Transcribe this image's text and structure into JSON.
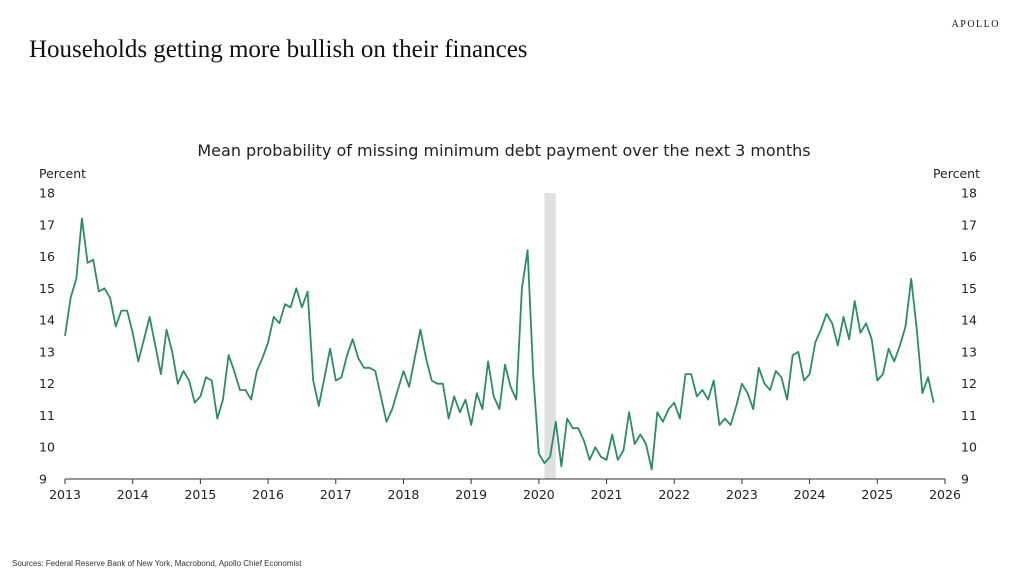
{
  "header": {
    "brand": "APOLLO",
    "title": "Households getting more bullish on their finances"
  },
  "footer": {
    "sources": "Sources: Federal Reserve Bank of New York, Macrobond, Apollo Chief Economist"
  },
  "colors": {
    "line": "#2e8b67",
    "recession": "#e0e0e0",
    "axis": "#333333"
  },
  "chart_data": {
    "type": "line",
    "title": "Mean probability of missing minimum debt payment over the next 3 months",
    "ylabel_left": "Percent",
    "ylabel_right": "Percent",
    "ylim": [
      9,
      18
    ],
    "yticks": [
      9,
      10,
      11,
      12,
      13,
      14,
      15,
      16,
      17,
      18
    ],
    "xlim": [
      2013,
      2026
    ],
    "xticks": [
      "2013",
      "2014",
      "2015",
      "2016",
      "2017",
      "2018",
      "2019",
      "2020",
      "2021",
      "2022",
      "2023",
      "2024",
      "2025",
      "2026"
    ],
    "shaded_period": {
      "start": 2020.083,
      "end": 2020.25
    },
    "series": [
      {
        "x_start": 2013.0,
        "frequency": "monthly",
        "values": [
          13.5,
          14.7,
          15.3,
          17.2,
          15.8,
          15.9,
          14.9,
          15.0,
          14.7,
          13.8,
          14.3,
          14.3,
          13.6,
          12.7,
          13.4,
          14.1,
          13.2,
          12.3,
          13.7,
          13.0,
          12.0,
          12.4,
          12.1,
          11.4,
          11.6,
          12.2,
          12.1,
          10.9,
          11.5,
          12.9,
          12.4,
          11.8,
          11.8,
          11.5,
          12.4,
          12.8,
          13.3,
          14.1,
          13.9,
          14.5,
          14.4,
          15.0,
          14.4,
          14.9,
          12.1,
          11.3,
          12.2,
          13.1,
          12.1,
          12.2,
          12.9,
          13.4,
          12.8,
          12.5,
          12.5,
          12.4,
          11.6,
          10.8,
          11.2,
          11.8,
          12.4,
          11.9,
          12.8,
          13.7,
          12.8,
          12.1,
          12.0,
          12.0,
          10.9,
          11.6,
          11.1,
          11.5,
          10.7,
          11.7,
          11.2,
          12.7,
          11.6,
          11.2,
          12.6,
          11.9,
          11.5,
          15.0,
          16.2,
          12.3,
          9.8,
          9.5,
          9.7,
          10.8,
          9.4,
          10.9,
          10.6,
          10.6,
          10.2,
          9.6,
          10.0,
          9.7,
          9.6,
          10.4,
          9.6,
          9.9,
          11.1,
          10.1,
          10.4,
          10.1,
          9.3,
          11.1,
          10.8,
          11.2,
          11.4,
          10.9,
          12.3,
          12.3,
          11.6,
          11.8,
          11.5,
          12.1,
          10.7,
          10.9,
          10.7,
          11.3,
          12.0,
          11.7,
          11.2,
          12.5,
          12.0,
          11.8,
          12.4,
          12.2,
          11.5,
          12.9,
          13.0,
          12.1,
          12.3,
          13.3,
          13.7,
          14.2,
          13.9,
          13.2,
          14.1,
          13.4,
          14.6,
          13.6,
          13.9,
          13.4,
          12.1,
          12.3,
          13.1,
          12.7,
          13.2,
          13.8,
          15.3,
          13.7,
          11.7,
          12.2,
          11.4
        ]
      }
    ]
  }
}
